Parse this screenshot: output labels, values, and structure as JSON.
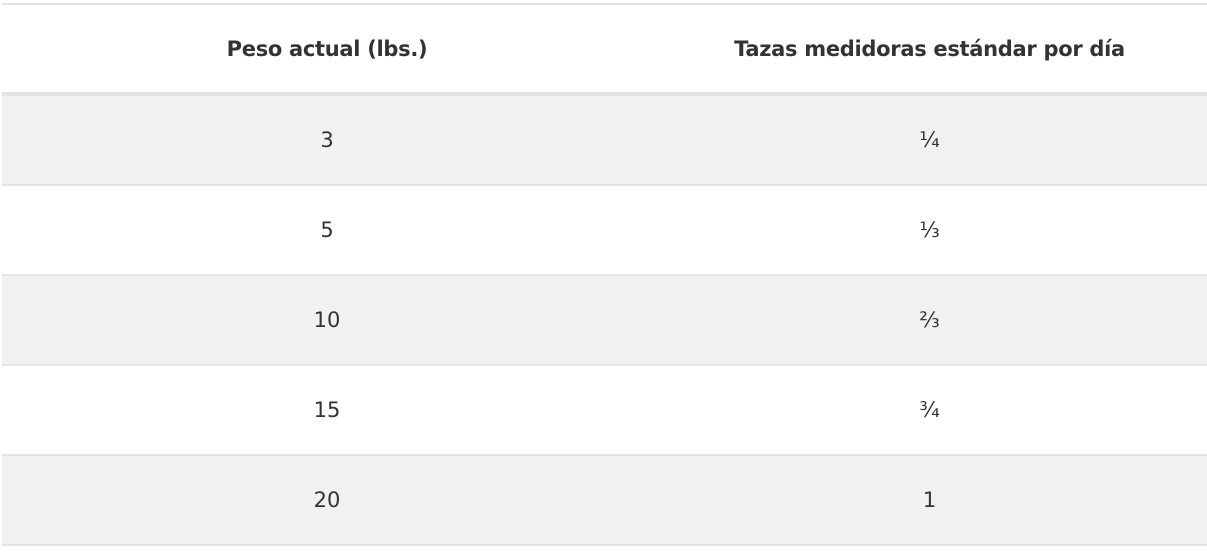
{
  "table": {
    "headers": [
      "Peso actual (lbs.)",
      "Tazas medidoras estándar por día"
    ],
    "rows": [
      [
        "3",
        "¼"
      ],
      [
        "5",
        "⅓"
      ],
      [
        "10",
        "⅔"
      ],
      [
        "15",
        "¾"
      ],
      [
        "20",
        "1"
      ]
    ]
  }
}
